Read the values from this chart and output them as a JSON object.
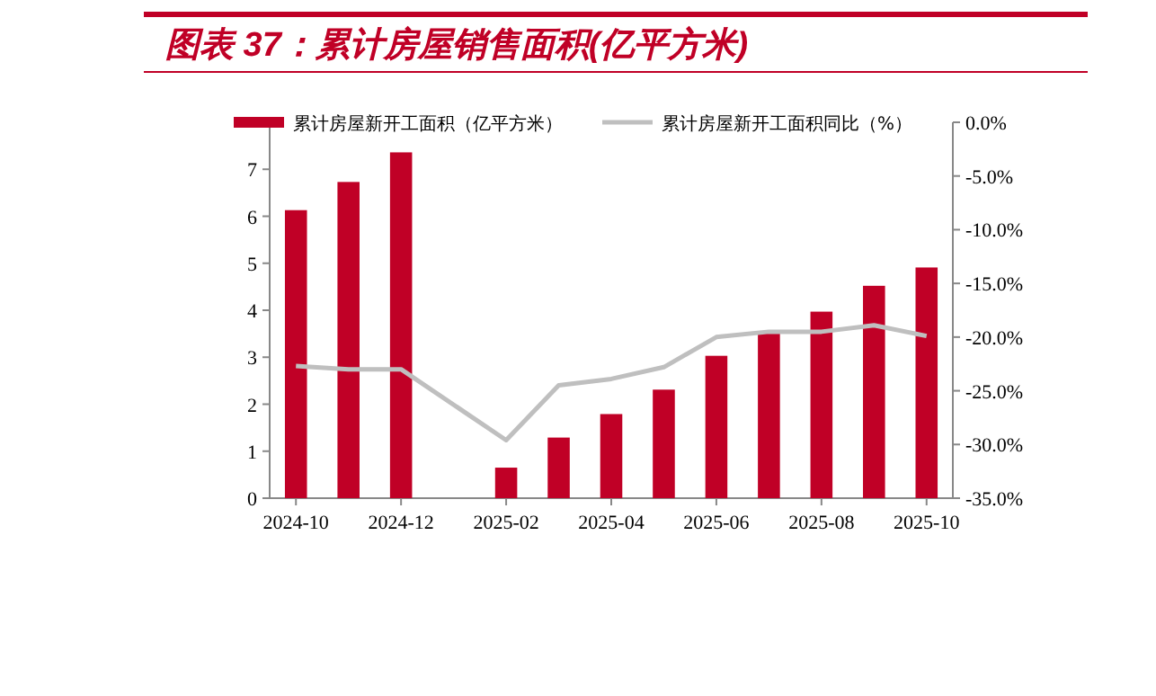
{
  "chart_data": {
    "type": "bar",
    "title": "图表 37：累计房屋销售面积(亿平方米)",
    "categories": [
      "2024-10",
      null,
      "2024-12",
      null,
      "2025-02",
      null,
      "2025-04",
      null,
      "2025-06",
      null,
      "2025-08",
      null,
      "2025-10"
    ],
    "series": [
      {
        "name": "累计房屋新开工面积（亿平方米）",
        "color": "#c00026",
        "values": [
          6.13,
          6.73,
          7.36,
          null,
          0.65,
          1.29,
          1.79,
          2.31,
          3.03,
          3.55,
          3.97,
          4.52,
          4.91
        ]
      },
      {
        "name": "累计房屋新开工面积同比（%）",
        "type": "line",
        "axis": "y2",
        "color": "#bfbfbf",
        "values": [
          -22.7,
          -23.0,
          -23.0,
          null,
          -29.6,
          -24.5,
          -23.9,
          -22.8,
          -20.0,
          -19.5,
          -19.5,
          -18.9,
          -19.9
        ]
      }
    ],
    "ylim": [
      0,
      8
    ],
    "yticks": [
      0,
      1,
      2,
      3,
      4,
      5,
      6,
      7
    ],
    "y2lim": [
      -35,
      0
    ],
    "y2ticks": [
      {
        "value": 0,
        "label": "0.0%"
      },
      {
        "value": -5,
        "label": "-5.0%"
      },
      {
        "value": -10,
        "label": "-10.0%"
      },
      {
        "value": -15,
        "label": "-15.0%"
      },
      {
        "value": -20,
        "label": "-20.0%"
      },
      {
        "value": -25,
        "label": "-25.0%"
      },
      {
        "value": -30,
        "label": "-30.0%"
      },
      {
        "value": -35,
        "label": "-35.0%"
      }
    ],
    "legend": "top"
  }
}
